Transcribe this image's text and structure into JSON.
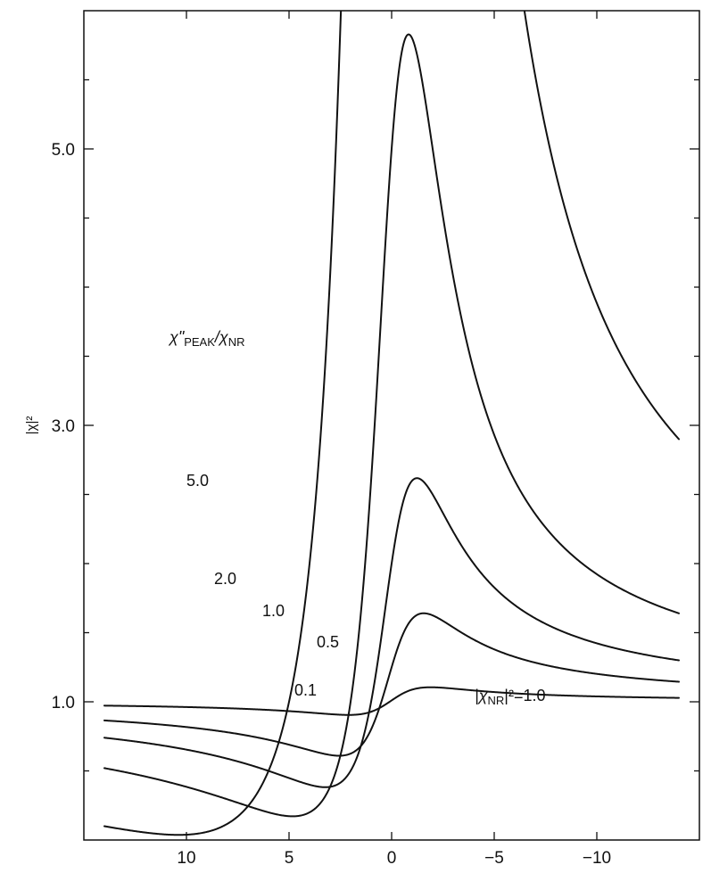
{
  "chart_data": {
    "type": "line",
    "title": "",
    "xlabel": "",
    "ylabel": "|χ|²",
    "xlim": [
      15,
      -15
    ],
    "ylim": [
      0.0,
      6.0
    ],
    "grid": false,
    "x_ticks": [
      10,
      5,
      0,
      -5,
      -10
    ],
    "x_tick_labels": [
      "10",
      "5",
      "0",
      "−5",
      "−10"
    ],
    "y_ticks": [
      1.0,
      3.0,
      5.0
    ],
    "y_tick_labels": [
      "1.0",
      "3.0",
      "5.0"
    ],
    "y_minor_ticks": [
      0.5,
      1.5,
      2.0,
      2.5,
      3.5,
      4.0,
      4.5,
      5.5
    ],
    "model": "|χ|² = (χNR + r·(−δ)/(δ²+1))² + (r/(δ²+1))², χNR = 1, δ = x/2",
    "series": [
      {
        "ratio": 0.1,
        "label": "0.1"
      },
      {
        "ratio": 0.5,
        "label": "0.5"
      },
      {
        "ratio": 1.0,
        "label": "1.0"
      },
      {
        "ratio": 2.0,
        "label": "2.0"
      },
      {
        "ratio": 5.0,
        "label": "5.0"
      }
    ],
    "annotations": {
      "legend_title_main": "χ\"",
      "legend_title_sub": "PEAK",
      "legend_title_tail": "/χ",
      "legend_title_tail_sub": "NR",
      "nr_label_pre": "|χ",
      "nr_label_sub": "NR",
      "nr_label_post": "|²=1.0"
    }
  }
}
